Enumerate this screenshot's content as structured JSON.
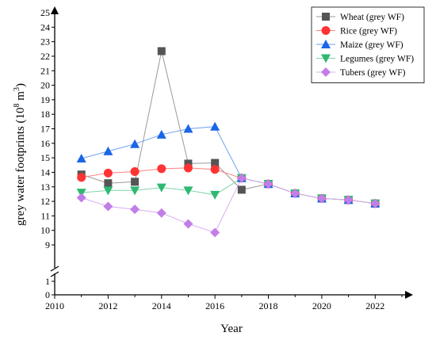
{
  "chart_data": {
    "type": "line",
    "xlabel": "Year",
    "ylabel_main": "grey water footprints (10",
    "ylabel_sup": "8",
    "ylabel_unit": " m",
    "ylabel_sup2": "3",
    "ylabel_close": ")",
    "xlim": [
      2010,
      2023
    ],
    "ylim": [
      0,
      25
    ],
    "axis_break": [
      1,
      8.5
    ],
    "x_ticks": [
      2010,
      2012,
      2014,
      2016,
      2018,
      2020,
      2022
    ],
    "y_ticks": [
      0,
      1,
      9,
      10,
      11,
      12,
      13,
      14,
      15,
      16,
      17,
      18,
      19,
      20,
      21,
      22,
      23,
      24,
      25
    ],
    "legend_position": "top-right",
    "series": [
      {
        "name": "Wheat (grey WF)",
        "color": "#555555",
        "line_color": "#9a9a9a",
        "marker": "square",
        "x": [
          2011,
          2012,
          2013,
          2014,
          2015,
          2016,
          2017,
          2018,
          2019,
          2020,
          2021,
          2022
        ],
        "y": [
          13.85,
          13.25,
          13.35,
          22.35,
          14.6,
          14.65,
          12.8,
          13.2,
          12.55,
          12.2,
          12.1,
          11.85
        ]
      },
      {
        "name": "Rice (grey WF)",
        "color": "#ff3333",
        "line_color": "#ff8080",
        "marker": "circle",
        "x": [
          2011,
          2012,
          2013,
          2014,
          2015,
          2016,
          2017,
          2018,
          2019,
          2020,
          2021,
          2022
        ],
        "y": [
          13.65,
          13.95,
          14.05,
          14.25,
          14.3,
          14.2,
          13.6,
          13.2,
          12.55,
          12.2,
          12.1,
          11.85
        ]
      },
      {
        "name": "Maize (grey WF)",
        "color": "#1a66e6",
        "line_color": "#6e9ff0",
        "marker": "triangle-up",
        "x": [
          2011,
          2012,
          2013,
          2014,
          2015,
          2016,
          2017,
          2018,
          2019,
          2020,
          2021,
          2022
        ],
        "y": [
          14.95,
          15.45,
          15.95,
          16.6,
          17.0,
          17.15,
          13.6,
          13.2,
          12.55,
          12.2,
          12.1,
          11.85
        ]
      },
      {
        "name": "Legumes (grey WF)",
        "color": "#2eb872",
        "line_color": "#7fd4a8",
        "marker": "triangle-down",
        "x": [
          2011,
          2012,
          2013,
          2014,
          2015,
          2016,
          2017,
          2018,
          2019,
          2020,
          2021,
          2022
        ],
        "y": [
          12.6,
          12.75,
          12.75,
          12.95,
          12.75,
          12.45,
          13.6,
          13.2,
          12.55,
          12.2,
          12.1,
          11.85
        ]
      },
      {
        "name": "Tubers (grey WF)",
        "color": "#c17ee8",
        "line_color": "#d9acf2",
        "marker": "diamond",
        "x": [
          2011,
          2012,
          2013,
          2014,
          2015,
          2016,
          2017,
          2018,
          2019,
          2020,
          2021,
          2022
        ],
        "y": [
          12.25,
          11.65,
          11.45,
          11.2,
          10.45,
          9.85,
          13.6,
          13.2,
          12.55,
          12.2,
          12.1,
          11.85
        ]
      }
    ]
  }
}
